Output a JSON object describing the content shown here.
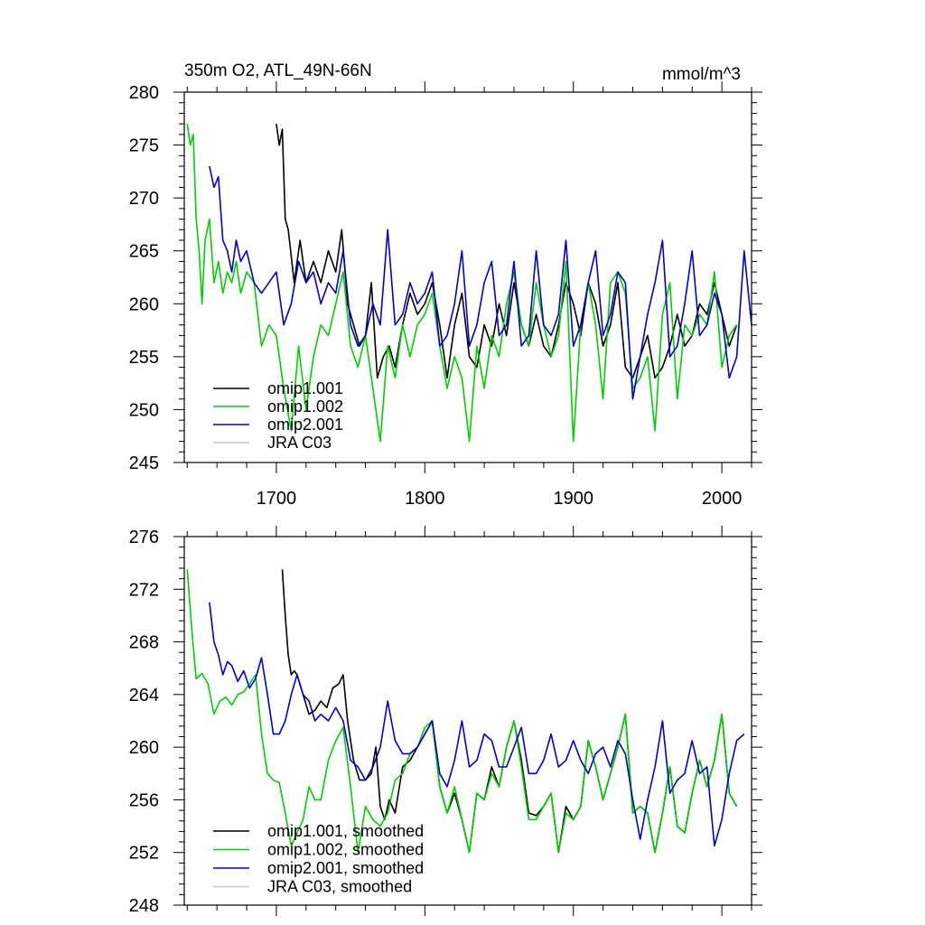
{
  "chart_data": [
    {
      "type": "line",
      "title": "350m O2, ATL_49N-66N",
      "units": "mmol/m^3",
      "xlim": [
        1638,
        2020
      ],
      "ylim": [
        245,
        280
      ],
      "xticks": [
        1700,
        1800,
        1900,
        2000
      ],
      "yticks": [
        245,
        250,
        255,
        260,
        265,
        270,
        275,
        280
      ],
      "legend_position": "bottom-left",
      "series": [
        {
          "name": "omip1.001",
          "color": "#000000",
          "x": [
            1700,
            1702,
            1704,
            1706,
            1708,
            1712,
            1716,
            1720,
            1725,
            1730,
            1735,
            1740,
            1744,
            1748,
            1752,
            1756,
            1760,
            1764,
            1768,
            1772,
            1776,
            1780,
            1785,
            1790,
            1795,
            1800,
            1805,
            1810,
            1815,
            1820,
            1825,
            1830,
            1835,
            1840,
            1845,
            1850,
            1855,
            1860,
            1865,
            1870,
            1875,
            1880,
            1885,
            1890,
            1895,
            1900,
            1905,
            1910,
            1915,
            1920,
            1925,
            1930,
            1935,
            1940,
            1945,
            1950,
            1955,
            1960,
            1965,
            1970,
            1975,
            1980,
            1985,
            1990,
            1995,
            2000,
            2005,
            2010
          ],
          "y": [
            277,
            275,
            276.5,
            268,
            267,
            262,
            266,
            262,
            264,
            262,
            265,
            263,
            267,
            260,
            258,
            256,
            257,
            262,
            253,
            255,
            256,
            254,
            258,
            261,
            259,
            260,
            262,
            258,
            253,
            258,
            261,
            255,
            254,
            258,
            256,
            260,
            257,
            262,
            258,
            256,
            259,
            256,
            255,
            258,
            262,
            260,
            257,
            262,
            260,
            256,
            258,
            262,
            254,
            253,
            255,
            257,
            253,
            254,
            256,
            259,
            256,
            257,
            260,
            259,
            262,
            259,
            256,
            258
          ]
        },
        {
          "name": "omip1.002",
          "color": "#00d000",
          "x": [
            1640,
            1642,
            1644,
            1646,
            1648,
            1650,
            1652,
            1655,
            1658,
            1661,
            1664,
            1667,
            1670,
            1673,
            1676,
            1680,
            1685,
            1690,
            1695,
            1700,
            1705,
            1710,
            1715,
            1720,
            1725,
            1730,
            1735,
            1740,
            1745,
            1750,
            1755,
            1760,
            1765,
            1770,
            1775,
            1780,
            1785,
            1790,
            1795,
            1800,
            1805,
            1810,
            1815,
            1820,
            1825,
            1830,
            1835,
            1840,
            1845,
            1850,
            1855,
            1860,
            1865,
            1870,
            1875,
            1880,
            1885,
            1890,
            1895,
            1900,
            1905,
            1910,
            1915,
            1920,
            1925,
            1930,
            1935,
            1940,
            1945,
            1950,
            1955,
            1960,
            1965,
            1970,
            1975,
            1980,
            1985,
            1990,
            1995,
            2000,
            2005,
            2010
          ],
          "y": [
            277,
            275,
            276,
            268,
            265,
            260,
            266,
            268,
            262,
            264,
            261,
            263,
            262,
            264,
            261,
            263,
            262,
            256,
            258,
            257,
            252,
            248,
            256,
            250,
            255,
            258,
            257,
            260,
            263,
            256,
            254,
            257,
            252,
            247,
            256,
            253,
            258,
            255,
            258,
            259,
            261,
            256,
            252,
            255,
            253,
            247,
            256,
            252,
            257,
            255,
            260,
            263,
            258,
            256,
            262,
            258,
            255,
            257,
            264,
            247,
            258,
            262,
            258,
            251,
            262,
            263,
            261,
            252,
            253,
            255,
            248,
            259,
            262,
            251,
            258,
            257,
            259,
            258,
            263,
            254,
            257,
            258
          ]
        },
        {
          "name": "omip2.001",
          "color": "#0000d0",
          "x": [
            1655,
            1658,
            1661,
            1664,
            1667,
            1670,
            1673,
            1676,
            1680,
            1685,
            1690,
            1695,
            1700,
            1705,
            1710,
            1715,
            1720,
            1725,
            1730,
            1735,
            1740,
            1745,
            1750,
            1755,
            1760,
            1765,
            1770,
            1775,
            1780,
            1785,
            1790,
            1795,
            1800,
            1805,
            1810,
            1815,
            1820,
            1825,
            1830,
            1835,
            1840,
            1845,
            1850,
            1855,
            1860,
            1865,
            1870,
            1875,
            1880,
            1885,
            1890,
            1895,
            1900,
            1905,
            1910,
            1915,
            1920,
            1925,
            1930,
            1935,
            1940,
            1945,
            1950,
            1955,
            1960,
            1965,
            1970,
            1975,
            1980,
            1985,
            1990,
            1995,
            2000,
            2005,
            2010,
            2015,
            2020
          ],
          "y": [
            273,
            271,
            272,
            266,
            265,
            263,
            266,
            264,
            265,
            262,
            261,
            262,
            263,
            258,
            260,
            264,
            262,
            263,
            260,
            262,
            261,
            265,
            258,
            256,
            257,
            260,
            258,
            267,
            258,
            259,
            262,
            260,
            261,
            263,
            256,
            257,
            260,
            265,
            256,
            258,
            262,
            264,
            257,
            258,
            264,
            256,
            257,
            265,
            258,
            257,
            259,
            266,
            256,
            258,
            262,
            265,
            257,
            259,
            263,
            262,
            251,
            255,
            259,
            262,
            266,
            255,
            256,
            260,
            265,
            257,
            258,
            261,
            259,
            253,
            255,
            265,
            258
          ]
        },
        {
          "name": "JRA C03",
          "color": "#c8c8c8",
          "x": [],
          "y": []
        }
      ]
    },
    {
      "type": "line",
      "title": "",
      "units": "",
      "xlim": [
        1638,
        2020
      ],
      "ylim": [
        248,
        276
      ],
      "xticks": [
        1700,
        1800,
        1900,
        2000
      ],
      "yticks": [
        248,
        252,
        256,
        260,
        264,
        268,
        272,
        276
      ],
      "legend_position": "bottom-left",
      "series": [
        {
          "name": "omip1.001, smoothed",
          "color": "#000000",
          "x": [
            1704,
            1706,
            1708,
            1710,
            1712,
            1714,
            1718,
            1722,
            1726,
            1730,
            1734,
            1738,
            1742,
            1745,
            1748,
            1752,
            1756,
            1760,
            1764,
            1767,
            1770,
            1773,
            1776,
            1780,
            1785,
            1790,
            1795,
            1800,
            1805,
            1810,
            1815,
            1820,
            1825,
            1830,
            1835,
            1840,
            1845,
            1850,
            1855,
            1860,
            1865,
            1870,
            1875,
            1880,
            1885,
            1890,
            1895,
            1900,
            1905,
            1910,
            1915,
            1920,
            1925,
            1930,
            1935,
            1940,
            1945,
            1950,
            1955,
            1960,
            1965,
            1970,
            1975,
            1980,
            1985,
            1990,
            1995,
            2000,
            2005,
            2010
          ],
          "y": [
            273.5,
            270,
            267,
            265.5,
            265.8,
            265.5,
            264,
            262.5,
            262.8,
            263.5,
            263,
            264.5,
            264.8,
            265.5,
            262,
            259,
            257.5,
            257.5,
            258,
            260,
            255.5,
            254.5,
            256,
            255,
            258.5,
            259,
            260,
            261,
            262,
            257,
            255,
            256.5,
            254.5,
            252,
            256.5,
            256,
            258.5,
            257,
            260,
            262,
            259,
            255,
            254.8,
            255.5,
            256.5,
            252,
            255.5,
            254.5,
            255.5,
            260.5,
            258.5,
            256,
            258,
            260,
            262.5,
            255,
            255.5,
            255,
            252,
            255,
            258.5,
            254,
            253.5,
            256.5,
            259,
            257,
            259,
            262.5,
            256.5,
            255.5
          ]
        },
        {
          "name": "omip1.002, smoothed",
          "color": "#00d000",
          "x": [
            1640,
            1643,
            1646,
            1650,
            1654,
            1658,
            1662,
            1666,
            1670,
            1674,
            1678,
            1682,
            1686,
            1690,
            1694,
            1698,
            1702,
            1706,
            1710,
            1714,
            1718,
            1722,
            1726,
            1730,
            1735,
            1740,
            1745,
            1750,
            1755,
            1760,
            1765,
            1770,
            1775,
            1780,
            1785,
            1790,
            1795,
            1800,
            1805,
            1810,
            1815,
            1820,
            1825,
            1830,
            1835,
            1840,
            1845,
            1850,
            1855,
            1860,
            1865,
            1870,
            1875,
            1880,
            1885,
            1890,
            1895,
            1900,
            1905,
            1910,
            1915,
            1920,
            1925,
            1930,
            1935,
            1940,
            1945,
            1950,
            1955,
            1960,
            1965,
            1970,
            1975,
            1980,
            1985,
            1990,
            1995,
            2000,
            2005,
            2010
          ],
          "y": [
            273.5,
            269,
            265.2,
            265.6,
            264.8,
            262.5,
            263.5,
            263.8,
            263.2,
            264,
            264.2,
            264.8,
            265.5,
            261,
            258,
            257.5,
            257.3,
            255,
            252.5,
            253.5,
            254.5,
            257,
            256,
            256,
            259,
            260.5,
            261.5,
            257,
            252,
            255.5,
            254.5,
            254,
            255,
            257.5,
            258,
            259.5,
            260,
            261.5,
            262,
            257,
            255,
            257,
            254.5,
            252,
            256.5,
            256,
            258,
            257,
            260,
            262,
            258.5,
            254.5,
            254.5,
            255.5,
            256.5,
            252,
            255,
            254.5,
            255.5,
            260.5,
            258.5,
            256,
            258,
            260,
            262.5,
            255,
            255.5,
            255,
            252,
            255,
            258.5,
            254,
            253.5,
            256.5,
            259,
            257,
            259,
            262.5,
            256.5,
            255.5
          ]
        },
        {
          "name": "omip2.001, smoothed",
          "color": "#0000d0",
          "x": [
            1655,
            1658,
            1661,
            1664,
            1667,
            1670,
            1674,
            1678,
            1682,
            1686,
            1690,
            1694,
            1698,
            1702,
            1706,
            1710,
            1714,
            1718,
            1722,
            1726,
            1730,
            1735,
            1740,
            1745,
            1750,
            1755,
            1760,
            1765,
            1770,
            1775,
            1780,
            1785,
            1790,
            1795,
            1800,
            1805,
            1810,
            1815,
            1820,
            1825,
            1830,
            1835,
            1840,
            1845,
            1850,
            1855,
            1860,
            1865,
            1870,
            1875,
            1880,
            1885,
            1890,
            1895,
            1900,
            1905,
            1910,
            1915,
            1920,
            1925,
            1930,
            1935,
            1940,
            1945,
            1950,
            1955,
            1960,
            1965,
            1970,
            1975,
            1980,
            1985,
            1990,
            1995,
            2000,
            2005,
            2010,
            2015
          ],
          "y": [
            271,
            268,
            267,
            265.5,
            266.5,
            266.2,
            265,
            265.8,
            264.5,
            265.2,
            266.8,
            264,
            261,
            261,
            262,
            264,
            265.5,
            264,
            263.5,
            262,
            262.5,
            262,
            263,
            262,
            259,
            258.5,
            257.5,
            258.5,
            260,
            263.5,
            260.5,
            259.5,
            259.5,
            260,
            261,
            262,
            258,
            257,
            259,
            262,
            258.5,
            259,
            261,
            260.5,
            258.5,
            258.5,
            260,
            261.5,
            258,
            258,
            259,
            261,
            258.5,
            259,
            260.5,
            259,
            258,
            259.5,
            260,
            258.5,
            260.5,
            259.5,
            256,
            253,
            256,
            258.5,
            262,
            256.5,
            257.5,
            258,
            260.5,
            258,
            258.5,
            252.5,
            254.5,
            258,
            260.5,
            261
          ]
        },
        {
          "name": "JRA C03, smoothed",
          "color": "#c8c8c8",
          "x": [],
          "y": []
        }
      ]
    }
  ]
}
